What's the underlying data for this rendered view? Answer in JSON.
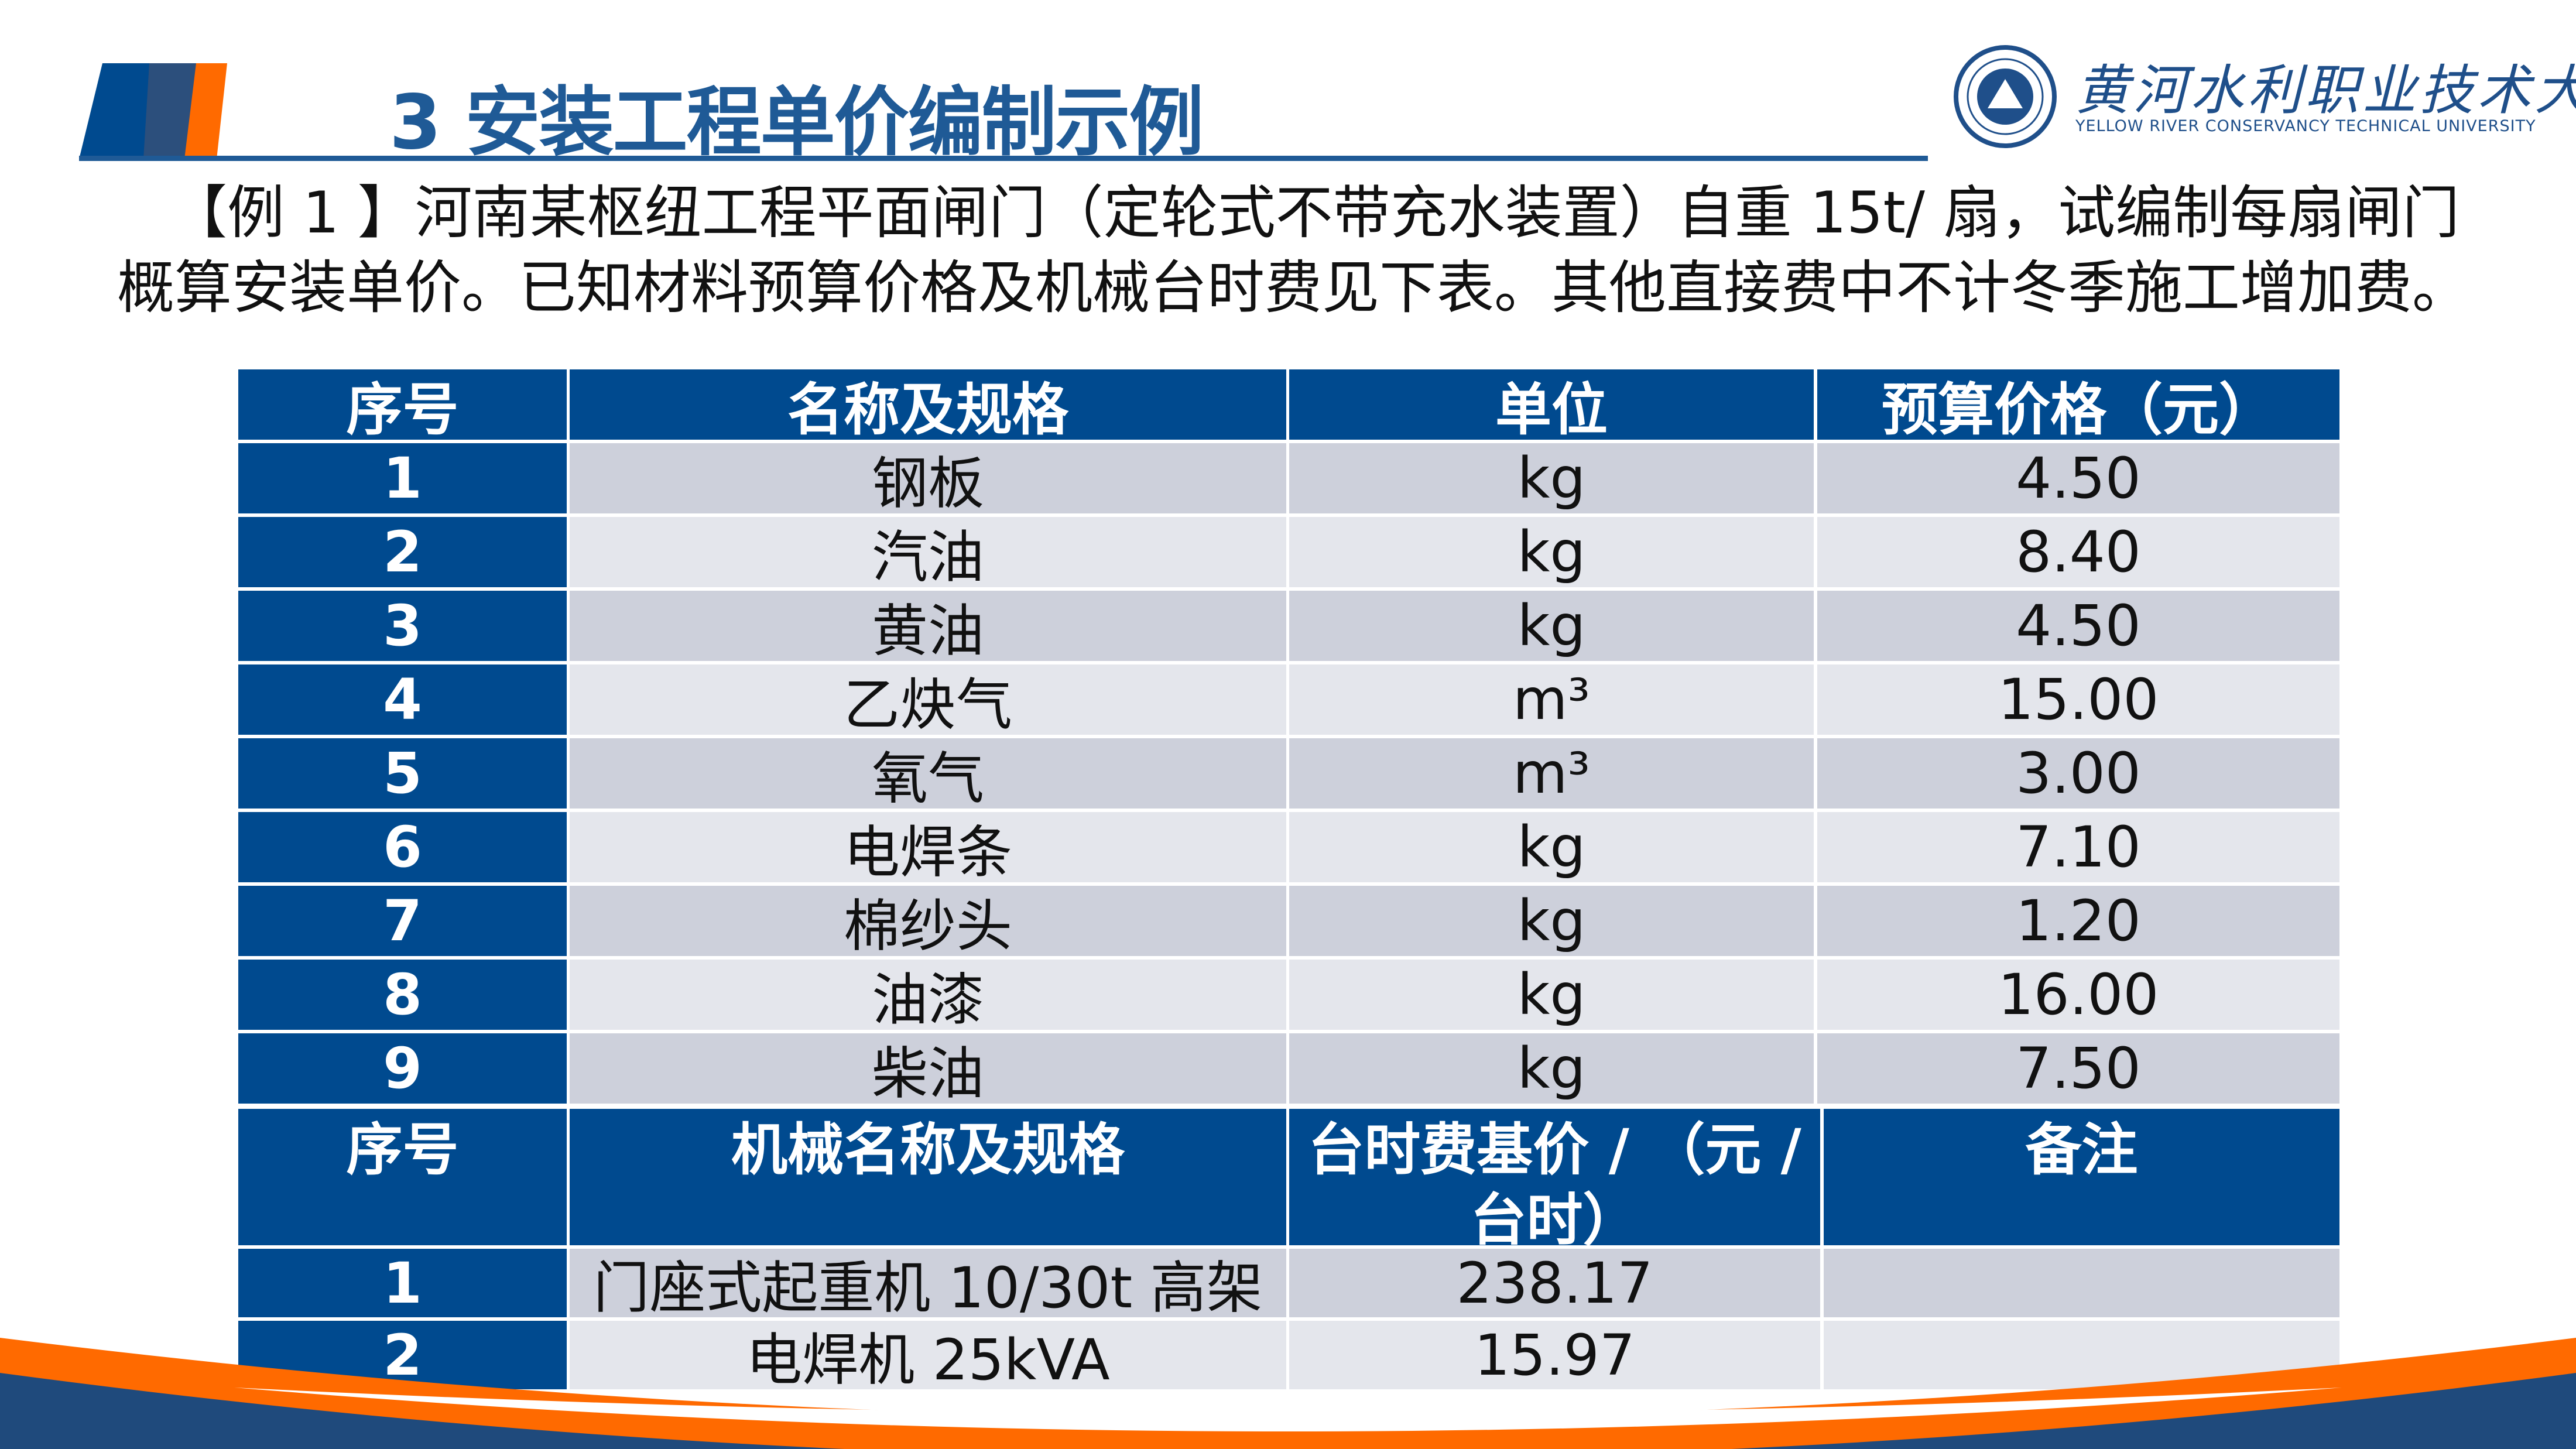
{
  "header": {
    "title": "3 安装工程单价编制示例",
    "logo_cn": "黄河水利职业技术大学",
    "logo_en": "YELLOW RIVER CONSERVANCY TECHNICAL UNIVERSITY"
  },
  "problem": {
    "line1": "【例 1 】河南某枢纽工程平面闸门（定轮式不带充水装置）自重 15t/ 扇，试编制每扇闸门",
    "line2": "概算安装单价。已知材料预算价格及机械台时费见下表。其他直接费中不计冬季施工增加费。"
  },
  "materials_table": {
    "headers": [
      "序号",
      "名称及规格",
      "单位",
      "预算价格（元）"
    ],
    "rows": [
      [
        "1",
        "钢板",
        "kg",
        "4.50"
      ],
      [
        "2",
        "汽油",
        "kg",
        "8.40"
      ],
      [
        "3",
        "黄油",
        "kg",
        "4.50"
      ],
      [
        "4",
        "乙炔气",
        "m³",
        "15.00"
      ],
      [
        "5",
        "氧气",
        "m³",
        "3.00"
      ],
      [
        "6",
        "电焊条",
        "kg",
        "7.10"
      ],
      [
        "7",
        "棉纱头",
        "kg",
        "1.20"
      ],
      [
        "8",
        "油漆",
        "kg",
        "16.00"
      ],
      [
        "9",
        "柴油",
        "kg",
        "7.50"
      ]
    ]
  },
  "machinery_table": {
    "headers": [
      "序号",
      "机械名称及规格",
      "台时费基价 / （元 / 台时）",
      "备注"
    ],
    "rows": [
      [
        "1",
        "门座式起重机 10/30t 高架",
        "238.17",
        ""
      ],
      [
        "2",
        "电焊机 25kVA",
        "15.97",
        ""
      ]
    ]
  },
  "colors": {
    "header_blue": "#004a8f",
    "title_blue": "#1f5a96",
    "accent_orange": "#ff6a00",
    "row_odd": "#cdd0db",
    "row_even": "#e4e6ec"
  }
}
